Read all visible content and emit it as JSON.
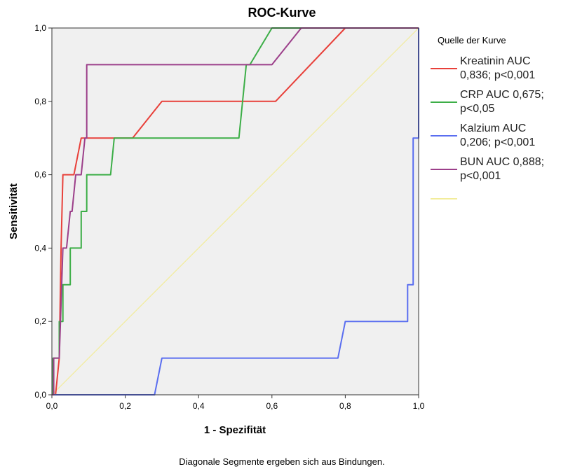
{
  "chart_data": {
    "type": "line",
    "title": "ROC-Kurve",
    "xlabel": "1 - Spezifität",
    "ylabel": "Sensitivität",
    "xlim": [
      0,
      1
    ],
    "ylim": [
      0,
      1
    ],
    "xticks": [
      "0,0",
      "0,2",
      "0,4",
      "0,6",
      "0,8",
      "1,0"
    ],
    "yticks": [
      "0,0",
      "0,2",
      "0,4",
      "0,6",
      "0,8",
      "1,0"
    ],
    "grid": false,
    "plot_background": "#f0f0f0",
    "legend_title": "Quelle der Kurve",
    "legend_placement": "right",
    "footnote": "Diagonale Segmente ergeben sich aus Bindungen.",
    "series": [
      {
        "name": "Kreatinin AUC 0,836; p<0,001",
        "legend_lines": [
          "Kreatinin AUC",
          "0,836; p<0,001"
        ],
        "color": "#e8403a",
        "x": [
          0,
          0.01,
          0.02,
          0.025,
          0.03,
          0.03,
          0.06,
          0.06,
          0.08,
          0.11,
          0.22,
          0.3,
          0.61,
          0.8,
          1.0
        ],
        "y": [
          0,
          0,
          0.1,
          0.4,
          0.6,
          0.6,
          0.6,
          0.6,
          0.7,
          0.7,
          0.7,
          0.8,
          0.8,
          1.0,
          1.0
        ]
      },
      {
        "name": "CRP AUC 0,675; p<0,05",
        "legend_lines": [
          "CRP AUC 0,675;",
          "p<0,05"
        ],
        "color": "#3cae47",
        "x": [
          0,
          0.003,
          0.003,
          0.008,
          0.008,
          0.02,
          0.02,
          0.03,
          0.03,
          0.05,
          0.05,
          0.08,
          0.08,
          0.095,
          0.095,
          0.16,
          0.17,
          0.51,
          0.53,
          0.54,
          0.6,
          0.62,
          1.0
        ],
        "y": [
          0,
          0,
          0.1,
          0.1,
          0.1,
          0.1,
          0.2,
          0.2,
          0.3,
          0.3,
          0.4,
          0.4,
          0.5,
          0.5,
          0.6,
          0.6,
          0.7,
          0.7,
          0.9,
          0.9,
          1.0,
          1.0,
          1.0
        ]
      },
      {
        "name": "Kalzium AUC 0,206; p<0,001",
        "legend_lines": [
          "Kalzium AUC",
          "0,206; p<0,001"
        ],
        "color": "#5a6ef0",
        "x": [
          0,
          0.28,
          0.3,
          0.78,
          0.8,
          0.97,
          0.97,
          0.985,
          0.985,
          1.0,
          1.0
        ],
        "y": [
          0,
          0,
          0.1,
          0.1,
          0.2,
          0.2,
          0.3,
          0.3,
          0.7,
          0.7,
          1.0
        ]
      },
      {
        "name": "BUN AUC 0,888; p<0,001",
        "legend_lines": [
          "BUN AUC 0,888;",
          "p<0,001"
        ],
        "color": "#9c3f8a",
        "x": [
          0,
          0.005,
          0.005,
          0.02,
          0.03,
          0.035,
          0.04,
          0.05,
          0.055,
          0.065,
          0.08,
          0.09,
          0.095,
          0.095,
          0.11,
          0.6,
          0.68,
          1.0
        ],
        "y": [
          0,
          0,
          0.1,
          0.1,
          0.4,
          0.4,
          0.4,
          0.5,
          0.5,
          0.6,
          0.6,
          0.7,
          0.7,
          0.9,
          0.9,
          0.9,
          1.0,
          1.0
        ]
      },
      {
        "name": "",
        "legend_lines": [],
        "color": "#f2ec9a",
        "x": [
          0,
          1
        ],
        "y": [
          0,
          1
        ]
      }
    ]
  }
}
